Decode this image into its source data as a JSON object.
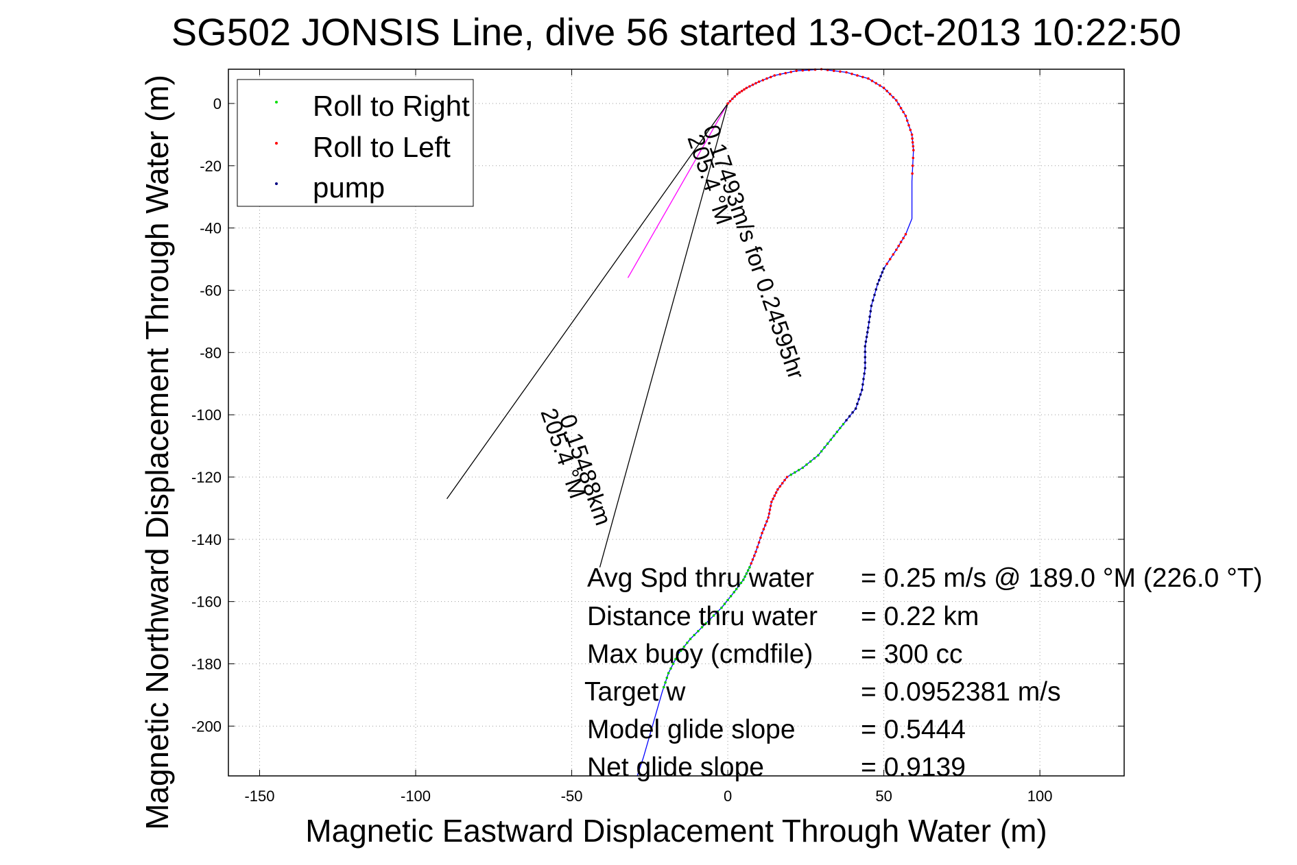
{
  "chart_data": {
    "type": "line",
    "title": "SG502 JONSIS Line, dive 56 started 13-Oct-2013 10:22:50",
    "xlabel": "Magnetic Eastward Displacement Through Water (m)",
    "ylabel": "Magnetic Northward Displacement Through Water (m)",
    "xlim": [
      -160,
      127
    ],
    "ylim": [
      -216,
      11
    ],
    "x_ticks": [
      -150,
      -100,
      -50,
      0,
      50,
      100
    ],
    "y_ticks": [
      0,
      -20,
      -40,
      -60,
      -80,
      -100,
      -120,
      -140,
      -160,
      -180,
      -200
    ],
    "grid": true,
    "legend": {
      "position": "top-left",
      "entries": [
        {
          "label": "Roll to Right",
          "color": "#00dd00"
        },
        {
          "label": "Roll to Left",
          "color": "#ff0000"
        },
        {
          "label": "pump",
          "color": "#000080"
        }
      ]
    },
    "track": {
      "color": "#0000ff",
      "points": [
        [
          0,
          0
        ],
        [
          3,
          3
        ],
        [
          6,
          5
        ],
        [
          10,
          7
        ],
        [
          15,
          9
        ],
        [
          22,
          10.5
        ],
        [
          30,
          11
        ],
        [
          38,
          10
        ],
        [
          45,
          8
        ],
        [
          50,
          5
        ],
        [
          54,
          1
        ],
        [
          57,
          -4
        ],
        [
          59,
          -10
        ],
        [
          59.5,
          -15
        ],
        [
          59,
          -25
        ],
        [
          59,
          -37
        ],
        [
          57,
          -42
        ],
        [
          54,
          -47
        ],
        [
          50,
          -53
        ],
        [
          48,
          -58
        ],
        [
          46,
          -65
        ],
        [
          45,
          -72
        ],
        [
          44,
          -78
        ],
        [
          44,
          -85
        ],
        [
          43,
          -92
        ],
        [
          41,
          -98
        ],
        [
          37,
          -103
        ],
        [
          33,
          -108
        ],
        [
          29,
          -113
        ],
        [
          24,
          -117
        ],
        [
          19,
          -120
        ],
        [
          16,
          -124
        ],
        [
          14,
          -128
        ],
        [
          13,
          -133
        ],
        [
          11,
          -138
        ],
        [
          9,
          -144
        ],
        [
          7,
          -149
        ],
        [
          5,
          -153
        ],
        [
          2,
          -157
        ],
        [
          -2,
          -162
        ],
        [
          -7,
          -167
        ],
        [
          -12,
          -172
        ],
        [
          -16,
          -177
        ],
        [
          -19,
          -183
        ],
        [
          -21,
          -189
        ],
        [
          -23,
          -196
        ],
        [
          -25,
          -203
        ],
        [
          -27,
          -210
        ],
        [
          -29,
          -216
        ]
      ],
      "segments": [
        {
          "from": 0,
          "to": 10,
          "marker": "red"
        },
        {
          "from": 10,
          "to": 14,
          "marker": "red"
        },
        {
          "from": 16,
          "to": 18,
          "marker": "red"
        },
        {
          "from": 18,
          "to": 26,
          "marker": "pump"
        },
        {
          "from": 26,
          "to": 30,
          "marker": "green"
        },
        {
          "from": 30,
          "to": 36,
          "marker": "red"
        },
        {
          "from": 36,
          "to": 44,
          "marker": "green"
        }
      ]
    },
    "current_lines": [
      {
        "from": [
          0,
          0
        ],
        "to": [
          -90,
          -127
        ]
      },
      {
        "from": [
          0,
          0
        ],
        "to": [
          -41,
          -149
        ]
      }
    ],
    "mid_line": {
      "from": [
        0,
        0
      ],
      "to": [
        -32,
        -56
      ],
      "color": "#ff00ff"
    },
    "track_labels": [
      {
        "text": "0.17493m/s for 0.24595hr",
        "anchor": [
          -8,
          -8
        ],
        "angle": 71
      },
      {
        "text": "205.4 °M",
        "anchor": [
          -13,
          -11
        ],
        "angle": 71
      },
      {
        "text": "205.4 °M",
        "anchor": [
          -60,
          -99
        ],
        "angle": 71
      },
      {
        "text": "0.15488km",
        "anchor": [
          -54,
          -101
        ],
        "angle": 71
      }
    ],
    "annotations": [
      {
        "label": "Avg Spd thru water",
        "value": "=  0.25 m/s @ 189.0 °M (226.0 °T)"
      },
      {
        "label": "Distance thru water",
        "value": "=  0.22 km"
      },
      {
        "label": "Max buoy (cmdfile)",
        "value": "= 300 cc"
      },
      {
        "label": "Target w",
        "value": "= 0.0952381 m/s"
      },
      {
        "label": "Model glide slope",
        "value": "= 0.5444"
      },
      {
        "label": "Net glide slope",
        "value": "= 0.9139"
      }
    ]
  }
}
